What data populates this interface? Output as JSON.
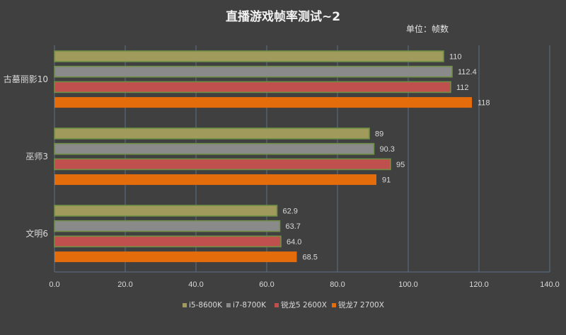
{
  "chart_data": {
    "type": "bar",
    "orientation": "horizontal",
    "title": "直播游戏帧率测试~2",
    "unit_label": "单位：帧数",
    "categories": [
      "古墓丽影10",
      "巫师3",
      "文明6"
    ],
    "series": [
      {
        "name": "i5-8600K",
        "values": [
          110,
          89,
          62.9
        ],
        "labels": [
          "110",
          "89",
          "62.9"
        ],
        "color": "#a09b5c"
      },
      {
        "name": "i7-8700K",
        "values": [
          112.4,
          90.3,
          63.7
        ],
        "labels": [
          "112.4",
          "90.3",
          "63.7"
        ],
        "color": "#8a8a8a"
      },
      {
        "name": "锐龙5 2600X",
        "values": [
          112,
          95,
          64.0
        ],
        "labels": [
          "112",
          "95",
          "64.0"
        ],
        "color": "#c0504d"
      },
      {
        "name": "锐龙7 2700X",
        "values": [
          118,
          91,
          68.5
        ],
        "labels": [
          "118",
          "91",
          "68.5"
        ],
        "color": "#e46c0a"
      }
    ],
    "xlim": [
      0,
      140
    ],
    "x_ticks": [
      "0.0",
      "20.0",
      "40.0",
      "60.0",
      "80.0",
      "100.0",
      "120.0",
      "140.0"
    ],
    "grid": true,
    "legend_position": "bottom"
  }
}
